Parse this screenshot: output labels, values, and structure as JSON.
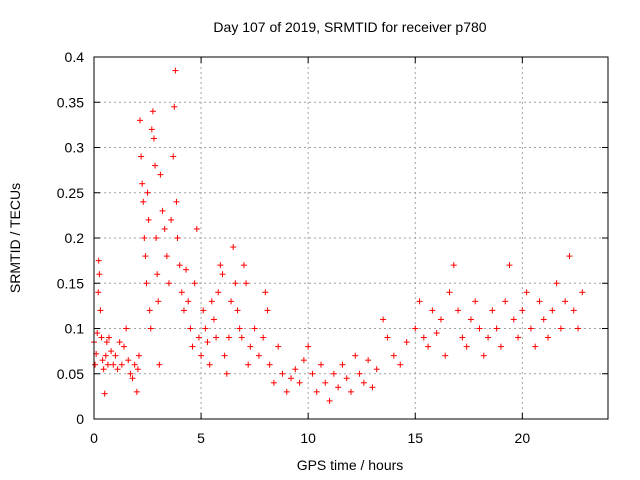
{
  "chart_data": {
    "type": "scatter",
    "title": "Day 107 of 2019, SRMTID for receiver p780",
    "xlabel": "GPS time / hours",
    "ylabel": "SRMTID / TECUs",
    "xlim": [
      0,
      24
    ],
    "ylim": [
      0,
      0.4
    ],
    "xticks": [
      0,
      5,
      10,
      15,
      20
    ],
    "xtick_labels": [
      "0",
      "5",
      "10",
      "15",
      "20"
    ],
    "yticks": [
      0,
      0.05,
      0.1,
      0.15,
      0.2,
      0.25,
      0.3,
      0.35,
      0.4
    ],
    "ytick_labels": [
      "0",
      "0.05",
      "0.1",
      "0.15",
      "0.2",
      "0.25",
      "0.3",
      "0.35",
      "0.4"
    ],
    "grid": true,
    "marker": "plus",
    "color": "#ff0000",
    "series": [
      {
        "name": "SRMTID",
        "points": [
          [
            0.0,
            0.085
          ],
          [
            0.05,
            0.06
          ],
          [
            0.1,
            0.072
          ],
          [
            0.15,
            0.095
          ],
          [
            0.2,
            0.14
          ],
          [
            0.22,
            0.175
          ],
          [
            0.25,
            0.16
          ],
          [
            0.3,
            0.12
          ],
          [
            0.35,
            0.09
          ],
          [
            0.4,
            0.065
          ],
          [
            0.45,
            0.055
          ],
          [
            0.5,
            0.028
          ],
          [
            0.55,
            0.07
          ],
          [
            0.6,
            0.085
          ],
          [
            0.65,
            0.06
          ],
          [
            0.7,
            0.09
          ],
          [
            0.8,
            0.075
          ],
          [
            0.9,
            0.06
          ],
          [
            1.0,
            0.07
          ],
          [
            1.1,
            0.055
          ],
          [
            1.2,
            0.085
          ],
          [
            1.3,
            0.06
          ],
          [
            1.4,
            0.08
          ],
          [
            1.5,
            0.1
          ],
          [
            1.6,
            0.065
          ],
          [
            1.7,
            0.05
          ],
          [
            1.8,
            0.045
          ],
          [
            1.9,
            0.06
          ],
          [
            2.0,
            0.03
          ],
          [
            2.05,
            0.055
          ],
          [
            2.1,
            0.07
          ],
          [
            2.15,
            0.33
          ],
          [
            2.2,
            0.29
          ],
          [
            2.25,
            0.26
          ],
          [
            2.3,
            0.24
          ],
          [
            2.35,
            0.2
          ],
          [
            2.4,
            0.18
          ],
          [
            2.45,
            0.15
          ],
          [
            2.5,
            0.25
          ],
          [
            2.55,
            0.22
          ],
          [
            2.6,
            0.12
          ],
          [
            2.65,
            0.1
          ],
          [
            2.7,
            0.32
          ],
          [
            2.75,
            0.34
          ],
          [
            2.8,
            0.31
          ],
          [
            2.85,
            0.28
          ],
          [
            2.9,
            0.2
          ],
          [
            2.95,
            0.16
          ],
          [
            3.0,
            0.13
          ],
          [
            3.05,
            0.06
          ],
          [
            3.1,
            0.27
          ],
          [
            3.2,
            0.23
          ],
          [
            3.3,
            0.21
          ],
          [
            3.4,
            0.18
          ],
          [
            3.5,
            0.15
          ],
          [
            3.6,
            0.22
          ],
          [
            3.7,
            0.29
          ],
          [
            3.75,
            0.345
          ],
          [
            3.8,
            0.385
          ],
          [
            3.85,
            0.24
          ],
          [
            3.9,
            0.2
          ],
          [
            4.0,
            0.17
          ],
          [
            4.1,
            0.14
          ],
          [
            4.2,
            0.12
          ],
          [
            4.3,
            0.165
          ],
          [
            4.4,
            0.13
          ],
          [
            4.5,
            0.1
          ],
          [
            4.6,
            0.08
          ],
          [
            4.7,
            0.15
          ],
          [
            4.8,
            0.21
          ],
          [
            4.9,
            0.09
          ],
          [
            5.0,
            0.07
          ],
          [
            5.1,
            0.12
          ],
          [
            5.2,
            0.1
          ],
          [
            5.3,
            0.085
          ],
          [
            5.4,
            0.06
          ],
          [
            5.5,
            0.13
          ],
          [
            5.6,
            0.11
          ],
          [
            5.7,
            0.09
          ],
          [
            5.8,
            0.14
          ],
          [
            5.9,
            0.17
          ],
          [
            6.0,
            0.16
          ],
          [
            6.1,
            0.07
          ],
          [
            6.2,
            0.05
          ],
          [
            6.3,
            0.09
          ],
          [
            6.4,
            0.13
          ],
          [
            6.5,
            0.19
          ],
          [
            6.6,
            0.15
          ],
          [
            6.7,
            0.12
          ],
          [
            6.8,
            0.1
          ],
          [
            6.9,
            0.09
          ],
          [
            7.0,
            0.17
          ],
          [
            7.1,
            0.15
          ],
          [
            7.2,
            0.06
          ],
          [
            7.3,
            0.08
          ],
          [
            7.5,
            0.1
          ],
          [
            7.7,
            0.07
          ],
          [
            7.9,
            0.09
          ],
          [
            8.0,
            0.14
          ],
          [
            8.1,
            0.12
          ],
          [
            8.2,
            0.06
          ],
          [
            8.4,
            0.04
          ],
          [
            8.6,
            0.08
          ],
          [
            8.8,
            0.05
          ],
          [
            9.0,
            0.03
          ],
          [
            9.2,
            0.045
          ],
          [
            9.4,
            0.055
          ],
          [
            9.6,
            0.04
          ],
          [
            9.8,
            0.065
          ],
          [
            10.0,
            0.08
          ],
          [
            10.2,
            0.05
          ],
          [
            10.4,
            0.03
          ],
          [
            10.6,
            0.06
          ],
          [
            10.8,
            0.04
          ],
          [
            11.0,
            0.02
          ],
          [
            11.2,
            0.05
          ],
          [
            11.4,
            0.035
          ],
          [
            11.6,
            0.06
          ],
          [
            11.8,
            0.045
          ],
          [
            12.0,
            0.03
          ],
          [
            12.2,
            0.07
          ],
          [
            12.4,
            0.05
          ],
          [
            12.6,
            0.04
          ],
          [
            12.8,
            0.065
          ],
          [
            13.0,
            0.035
          ],
          [
            13.2,
            0.055
          ],
          [
            13.5,
            0.11
          ],
          [
            13.7,
            0.09
          ],
          [
            14.0,
            0.07
          ],
          [
            14.3,
            0.06
          ],
          [
            14.6,
            0.085
          ],
          [
            15.0,
            0.1
          ],
          [
            15.2,
            0.13
          ],
          [
            15.4,
            0.09
          ],
          [
            15.6,
            0.08
          ],
          [
            15.8,
            0.12
          ],
          [
            16.0,
            0.095
          ],
          [
            16.2,
            0.11
          ],
          [
            16.4,
            0.07
          ],
          [
            16.6,
            0.14
          ],
          [
            16.8,
            0.17
          ],
          [
            17.0,
            0.12
          ],
          [
            17.2,
            0.09
          ],
          [
            17.4,
            0.08
          ],
          [
            17.6,
            0.11
          ],
          [
            17.8,
            0.13
          ],
          [
            18.0,
            0.1
          ],
          [
            18.2,
            0.07
          ],
          [
            18.4,
            0.09
          ],
          [
            18.6,
            0.12
          ],
          [
            18.8,
            0.1
          ],
          [
            19.0,
            0.08
          ],
          [
            19.2,
            0.13
          ],
          [
            19.4,
            0.17
          ],
          [
            19.6,
            0.11
          ],
          [
            19.8,
            0.09
          ],
          [
            20.0,
            0.12
          ],
          [
            20.2,
            0.14
          ],
          [
            20.4,
            0.1
          ],
          [
            20.6,
            0.08
          ],
          [
            20.8,
            0.13
          ],
          [
            21.0,
            0.11
          ],
          [
            21.2,
            0.09
          ],
          [
            21.4,
            0.12
          ],
          [
            21.6,
            0.15
          ],
          [
            21.8,
            0.1
          ],
          [
            22.0,
            0.13
          ],
          [
            22.2,
            0.18
          ],
          [
            22.4,
            0.12
          ],
          [
            22.6,
            0.1
          ],
          [
            22.8,
            0.14
          ]
        ]
      }
    ]
  }
}
